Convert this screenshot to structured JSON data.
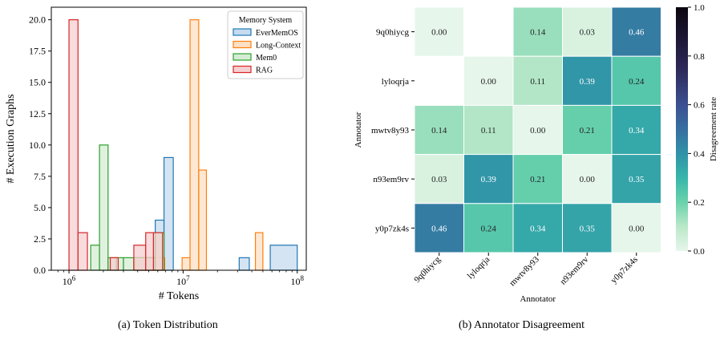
{
  "chart_data": [
    {
      "type": "histogram",
      "caption": "(a) Token Distribution",
      "xlabel": "# Tokens",
      "ylabel": "# Execution Graphs",
      "xscale": "log",
      "xlim": [
        700000,
        120000000
      ],
      "ylim": [
        0,
        21
      ],
      "x_ticks": [
        {
          "value": 1000000,
          "base": "10",
          "exp": "6"
        },
        {
          "value": 10000000,
          "base": "10",
          "exp": "7"
        },
        {
          "value": 100000000,
          "base": "10",
          "exp": "8"
        }
      ],
      "y_ticks": [
        "0.0",
        "2.5",
        "5.0",
        "7.5",
        "10.0",
        "12.5",
        "15.0",
        "17.5",
        "20.0"
      ],
      "y_tick_values": [
        0,
        2.5,
        5,
        7.5,
        10,
        12.5,
        15,
        17.5,
        20
      ],
      "legend": {
        "title": "Memory System",
        "placement": "top-right"
      },
      "series": [
        {
          "name": "EverMemOS",
          "color": "#1f77b4",
          "fill": "#c6dbef",
          "bins": [
            {
              "x0": 3800000,
              "x1": 4700000,
              "count": 1
            },
            {
              "x0": 4700000,
              "x1": 5700000,
              "count": 1
            },
            {
              "x0": 5700000,
              "x1": 6800000,
              "count": 4
            },
            {
              "x0": 6800000,
              "x1": 8200000,
              "count": 9
            },
            {
              "x0": 31000000,
              "x1": 38000000,
              "count": 1
            },
            {
              "x0": 58000000,
              "x1": 100000000,
              "count": 2
            }
          ]
        },
        {
          "name": "Long-Context",
          "color": "#ff7f0e",
          "fill": "#fde0c5",
          "bins": [
            {
              "x0": 3800000,
              "x1": 4700000,
              "count": 1
            },
            {
              "x0": 4700000,
              "x1": 6900000,
              "count": 1
            },
            {
              "x0": 9800000,
              "x1": 11500000,
              "count": 1
            },
            {
              "x0": 11500000,
              "x1": 13700000,
              "count": 20
            },
            {
              "x0": 13700000,
              "x1": 16000000,
              "count": 8
            },
            {
              "x0": 43000000,
              "x1": 50000000,
              "count": 3
            }
          ]
        },
        {
          "name": "Mem0",
          "color": "#2ca02c",
          "fill": "#d5ecd4",
          "bins": [
            {
              "x0": 1550000,
              "x1": 1850000,
              "count": 2
            },
            {
              "x0": 1850000,
              "x1": 2200000,
              "count": 10
            },
            {
              "x0": 2200000,
              "x1": 2600000,
              "count": 1
            },
            {
              "x0": 2600000,
              "x1": 3000000,
              "count": 1
            },
            {
              "x0": 3000000,
              "x1": 3700000,
              "count": 1
            },
            {
              "x0": 3700000,
              "x1": 5700000,
              "count": 1
            },
            {
              "x0": 5700000,
              "x1": 6800000,
              "count": 3
            }
          ]
        },
        {
          "name": "RAG",
          "color": "#d62728",
          "fill": "#f6cfd0",
          "bins": [
            {
              "x0": 1000000,
              "x1": 1200000,
              "count": 20
            },
            {
              "x0": 1200000,
              "x1": 1450000,
              "count": 3
            },
            {
              "x0": 2300000,
              "x1": 2700000,
              "count": 1
            },
            {
              "x0": 3700000,
              "x1": 4700000,
              "count": 2
            },
            {
              "x0": 4700000,
              "x1": 5500000,
              "count": 3
            },
            {
              "x0": 5500000,
              "x1": 6600000,
              "count": 3
            }
          ]
        }
      ]
    },
    {
      "type": "heatmap",
      "caption": "(b) Annotator Disagreement",
      "xlabel": "Annotator",
      "ylabel": "Annotator",
      "labels": [
        "9q0hiycg",
        "lyloqrja",
        "mwtv8y93",
        "n93em9rv",
        "y0p7zk4s"
      ],
      "colorbar": {
        "label": "Disagreement rate",
        "range": [
          0,
          1
        ],
        "ticks": [
          "0.0",
          "0.2",
          "0.4",
          "0.6",
          "0.8",
          "1.0"
        ],
        "tick_values": [
          0,
          0.2,
          0.4,
          0.6,
          0.8,
          1.0
        ]
      },
      "values": [
        [
          0.0,
          null,
          0.14,
          0.03,
          0.46
        ],
        [
          null,
          0.0,
          0.11,
          0.39,
          0.24
        ],
        [
          0.14,
          0.11,
          0.0,
          0.21,
          0.34
        ],
        [
          0.03,
          0.39,
          0.21,
          0.0,
          0.35
        ],
        [
          0.46,
          0.24,
          0.34,
          0.35,
          0.0
        ]
      ],
      "cell_text": [
        [
          "0.00",
          "",
          "0.14",
          "0.03",
          "0.46"
        ],
        [
          "",
          "0.00",
          "0.11",
          "0.39",
          "0.24"
        ],
        [
          "0.14",
          "0.11",
          "0.00",
          "0.21",
          "0.34"
        ],
        [
          "0.03",
          "0.39",
          "0.21",
          "0.00",
          "0.35"
        ],
        [
          "0.46",
          "0.24",
          "0.34",
          "0.35",
          "0.00"
        ]
      ]
    }
  ]
}
